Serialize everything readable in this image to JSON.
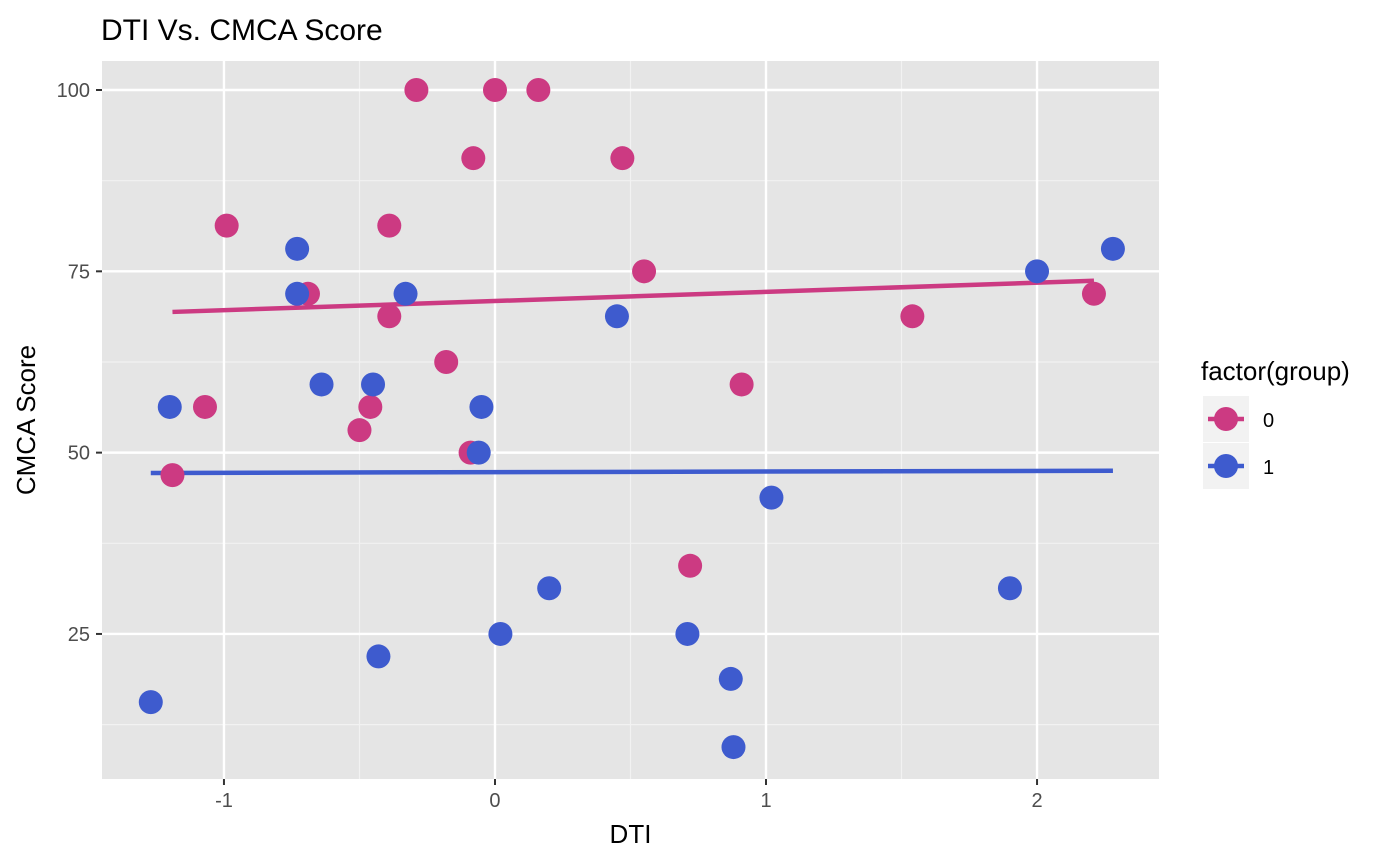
{
  "chart_data": {
    "type": "scatter",
    "title": "DTI Vs. CMCA Score",
    "xlabel": "DTI",
    "ylabel": "CMCA Score",
    "xlim": [
      -1.45,
      2.45
    ],
    "ylim": [
      5,
      104
    ],
    "x_ticks": [
      -1,
      0,
      1,
      2
    ],
    "x_tick_labels": [
      "-1",
      "0",
      "1",
      "2"
    ],
    "y_ticks": [
      25,
      50,
      75,
      100
    ],
    "y_tick_labels": [
      "25",
      "50",
      "75",
      "100"
    ],
    "grid": true,
    "legend": {
      "title": "factor(group)",
      "position": "right",
      "entries": [
        "0",
        "1"
      ]
    },
    "series": [
      {
        "name": "0",
        "color": "#cc3a82",
        "points": [
          {
            "x": -0.29,
            "y": 100
          },
          {
            "x": 0.0,
            "y": 100
          },
          {
            "x": 0.16,
            "y": 100
          },
          {
            "x": -0.08,
            "y": 90.6
          },
          {
            "x": 0.47,
            "y": 90.6
          },
          {
            "x": -0.99,
            "y": 81.3
          },
          {
            "x": -0.39,
            "y": 81.3
          },
          {
            "x": 0.55,
            "y": 75
          },
          {
            "x": -0.69,
            "y": 71.9
          },
          {
            "x": 2.21,
            "y": 71.9
          },
          {
            "x": -0.39,
            "y": 68.8
          },
          {
            "x": 1.54,
            "y": 68.8
          },
          {
            "x": -0.18,
            "y": 62.5
          },
          {
            "x": 0.91,
            "y": 59.4
          },
          {
            "x": -1.07,
            "y": 56.3
          },
          {
            "x": -0.46,
            "y": 56.3
          },
          {
            "x": -0.5,
            "y": 53.1
          },
          {
            "x": -0.09,
            "y": 50
          },
          {
            "x": -1.19,
            "y": 46.9
          },
          {
            "x": 0.72,
            "y": 34.4
          }
        ],
        "fit": {
          "x": [
            -1.19,
            2.21
          ],
          "y": [
            69.4,
            73.7
          ]
        }
      },
      {
        "name": "1",
        "color": "#3e5bce",
        "points": [
          {
            "x": -0.73,
            "y": 78.1
          },
          {
            "x": 2.28,
            "y": 78.1
          },
          {
            "x": 2.0,
            "y": 75
          },
          {
            "x": -0.73,
            "y": 71.9
          },
          {
            "x": -0.33,
            "y": 71.9
          },
          {
            "x": 0.45,
            "y": 68.8
          },
          {
            "x": -0.64,
            "y": 59.4
          },
          {
            "x": -0.45,
            "y": 59.4
          },
          {
            "x": -1.2,
            "y": 56.3
          },
          {
            "x": -0.05,
            "y": 56.3
          },
          {
            "x": -0.06,
            "y": 50
          },
          {
            "x": 1.02,
            "y": 43.8
          },
          {
            "x": 0.2,
            "y": 31.3
          },
          {
            "x": 1.9,
            "y": 31.3
          },
          {
            "x": 0.02,
            "y": 25
          },
          {
            "x": 0.71,
            "y": 25
          },
          {
            "x": -0.43,
            "y": 21.9
          },
          {
            "x": 0.87,
            "y": 18.8
          },
          {
            "x": -1.27,
            "y": 15.6
          },
          {
            "x": 0.88,
            "y": 9.4
          }
        ],
        "fit": {
          "x": [
            -1.27,
            2.28
          ],
          "y": [
            47.2,
            47.5
          ]
        }
      }
    ]
  }
}
